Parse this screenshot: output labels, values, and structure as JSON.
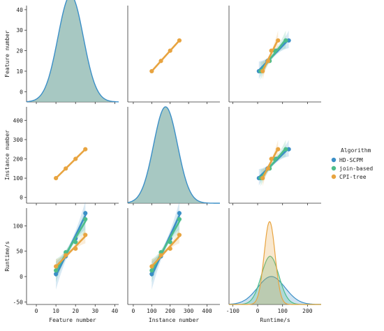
{
  "chart_data": {
    "type": "pairplot",
    "variables": [
      "Feature number",
      "Instance number",
      "Runtime/s"
    ],
    "axis_labels": {
      "x": [
        "Feature number",
        "Instance number",
        "Runtime/s"
      ],
      "y": [
        "Feature number",
        "Instance number",
        "Runtime/s"
      ]
    },
    "axis_ranges": {
      "Feature number": [
        -5,
        42
      ],
      "Instance number": [
        -30,
        470
      ],
      "Runtime/s": [
        -55,
        135
      ],
      "Runtime/s_x": [
        -115,
        255
      ]
    },
    "ticks": {
      "Feature number": [
        0,
        10,
        20,
        30,
        40
      ],
      "Instance number": [
        0,
        100,
        200,
        300,
        400
      ],
      "Runtime/s": [
        -50,
        0,
        50,
        100
      ],
      "Runtime/s_x": [
        -100,
        0,
        100,
        200
      ]
    },
    "legend": {
      "title": "Algorithm",
      "position": "right",
      "entries": [
        {
          "name": "HD-SCPM",
          "color": "#3b8fc7"
        },
        {
          "name": "join-based",
          "color": "#4dbd8a"
        },
        {
          "name": "CPI-tree",
          "color": "#e8a440"
        }
      ]
    },
    "series": [
      {
        "name": "HD-SCPM",
        "color": "#3b8fc7",
        "feature": [
          10,
          15,
          20,
          25
        ],
        "instance": [
          100,
          150,
          200,
          250
        ],
        "runtime": [
          5,
          40,
          75,
          125
        ]
      },
      {
        "name": "join-based",
        "color": "#4dbd8a",
        "feature": [
          10,
          15,
          20,
          25
        ],
        "instance": [
          100,
          150,
          200,
          250
        ],
        "runtime": [
          12,
          48,
          68,
          113
        ]
      },
      {
        "name": "CPI-tree",
        "color": "#e8a440",
        "feature": [
          10,
          15,
          20,
          25
        ],
        "instance": [
          100,
          150,
          200,
          250
        ],
        "runtime": [
          20,
          42,
          55,
          82
        ]
      }
    ],
    "diag_feature_kde": {
      "mean": 17.5,
      "sd": 6.5,
      "peak": 47
    },
    "diag_instance_kde": {
      "mean": 175,
      "sd": 65,
      "peak": 470
    },
    "diag_runtime_kde": [
      {
        "name": "HD-SCPM",
        "mean": 55,
        "sd": 55,
        "peak": 0.29
      },
      {
        "name": "join-based",
        "mean": 50,
        "sd": 35,
        "peak": 0.5
      },
      {
        "name": "CPI-tree",
        "mean": 48,
        "sd": 22,
        "peak": 0.86
      }
    ],
    "grid": false
  }
}
